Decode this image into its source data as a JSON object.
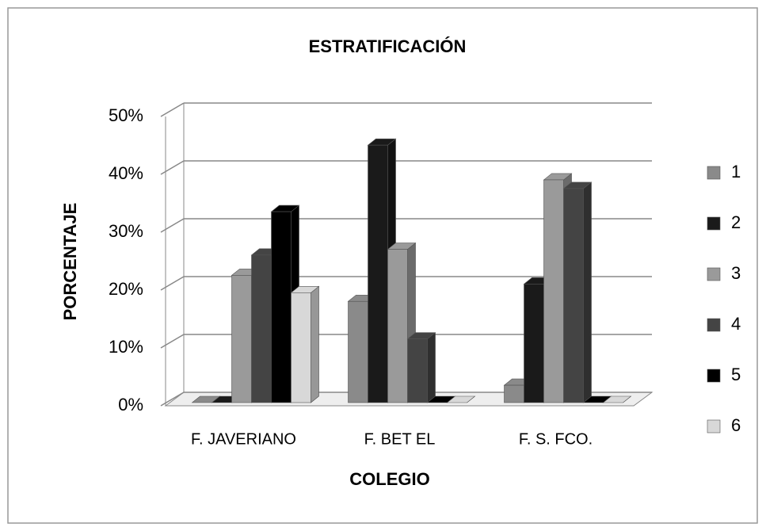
{
  "chart_data": {
    "type": "bar3d",
    "title": "ESTRATIFICACIÓN",
    "xlabel": "COLEGIO",
    "ylabel": "PORCENTAJE",
    "categories": [
      "F. JAVERIANO",
      "F. BET EL",
      "F. S. FCO."
    ],
    "series": [
      {
        "name": "1",
        "color": "#8a8a8a",
        "values": [
          0,
          17.5,
          3
        ]
      },
      {
        "name": "2",
        "color": "#1a1a1a",
        "values": [
          0,
          44.5,
          20.5
        ]
      },
      {
        "name": "3",
        "color": "#9a9a9a",
        "values": [
          22,
          26.5,
          38.5
        ]
      },
      {
        "name": "4",
        "color": "#444444",
        "values": [
          25.5,
          11,
          37
        ]
      },
      {
        "name": "5",
        "color": "#000000",
        "values": [
          33,
          0,
          0
        ]
      },
      {
        "name": "6",
        "color": "#d8d8d8",
        "values": [
          19,
          0,
          0
        ]
      }
    ],
    "ylim": [
      0,
      50
    ],
    "yticks": [
      {
        "value": 0,
        "label": "0%"
      },
      {
        "value": 10,
        "label": "10%"
      },
      {
        "value": 20,
        "label": "20%"
      },
      {
        "value": 30,
        "label": "30%"
      },
      {
        "value": 40,
        "label": "40%"
      },
      {
        "value": 50,
        "label": "50%"
      }
    ],
    "grid": true
  }
}
